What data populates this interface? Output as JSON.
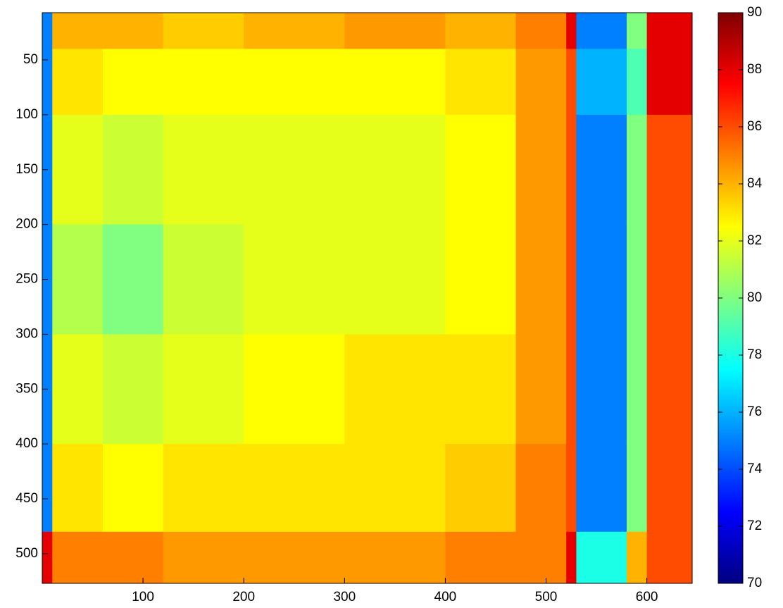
{
  "chart_data": {
    "type": "heatmap",
    "colormap": "jet",
    "clim": [
      70,
      90
    ],
    "xbins": [
      0,
      10,
      60,
      120,
      200,
      300,
      400,
      470,
      520,
      530,
      580,
      600,
      645
    ],
    "ybins": [
      7,
      40,
      100,
      200,
      300,
      400,
      480,
      527
    ],
    "z": [
      [
        75,
        84,
        84,
        83.5,
        84,
        84.5,
        84,
        85,
        88,
        75,
        80,
        88
      ],
      [
        75,
        83,
        82.5,
        82.5,
        82.5,
        82.5,
        83,
        84.5,
        86,
        76,
        79,
        88
      ],
      [
        75,
        82,
        81.5,
        82,
        82,
        82,
        82.5,
        84.5,
        86,
        75,
        80,
        86
      ],
      [
        75,
        81,
        80,
        81.5,
        82,
        82,
        82.5,
        84.5,
        86,
        75,
        80,
        86
      ],
      [
        75,
        82,
        81.5,
        82,
        82.5,
        83,
        83,
        84.5,
        86,
        75,
        80,
        86
      ],
      [
        75,
        83,
        82.5,
        83,
        83,
        83,
        83.5,
        85,
        86,
        75,
        80,
        86
      ],
      [
        88,
        85,
        85,
        84.5,
        84.5,
        84.5,
        85,
        85,
        88,
        78,
        84,
        86
      ]
    ],
    "xlim": [
      0,
      645
    ],
    "ylim": [
      7,
      527
    ],
    "xticks": [
      100,
      200,
      300,
      400,
      500,
      600
    ],
    "yticks": [
      50,
      100,
      150,
      200,
      250,
      300,
      350,
      400,
      450,
      500
    ],
    "colorbar_ticks": [
      70,
      72,
      74,
      76,
      78,
      80,
      82,
      84,
      86,
      88,
      90
    ]
  }
}
